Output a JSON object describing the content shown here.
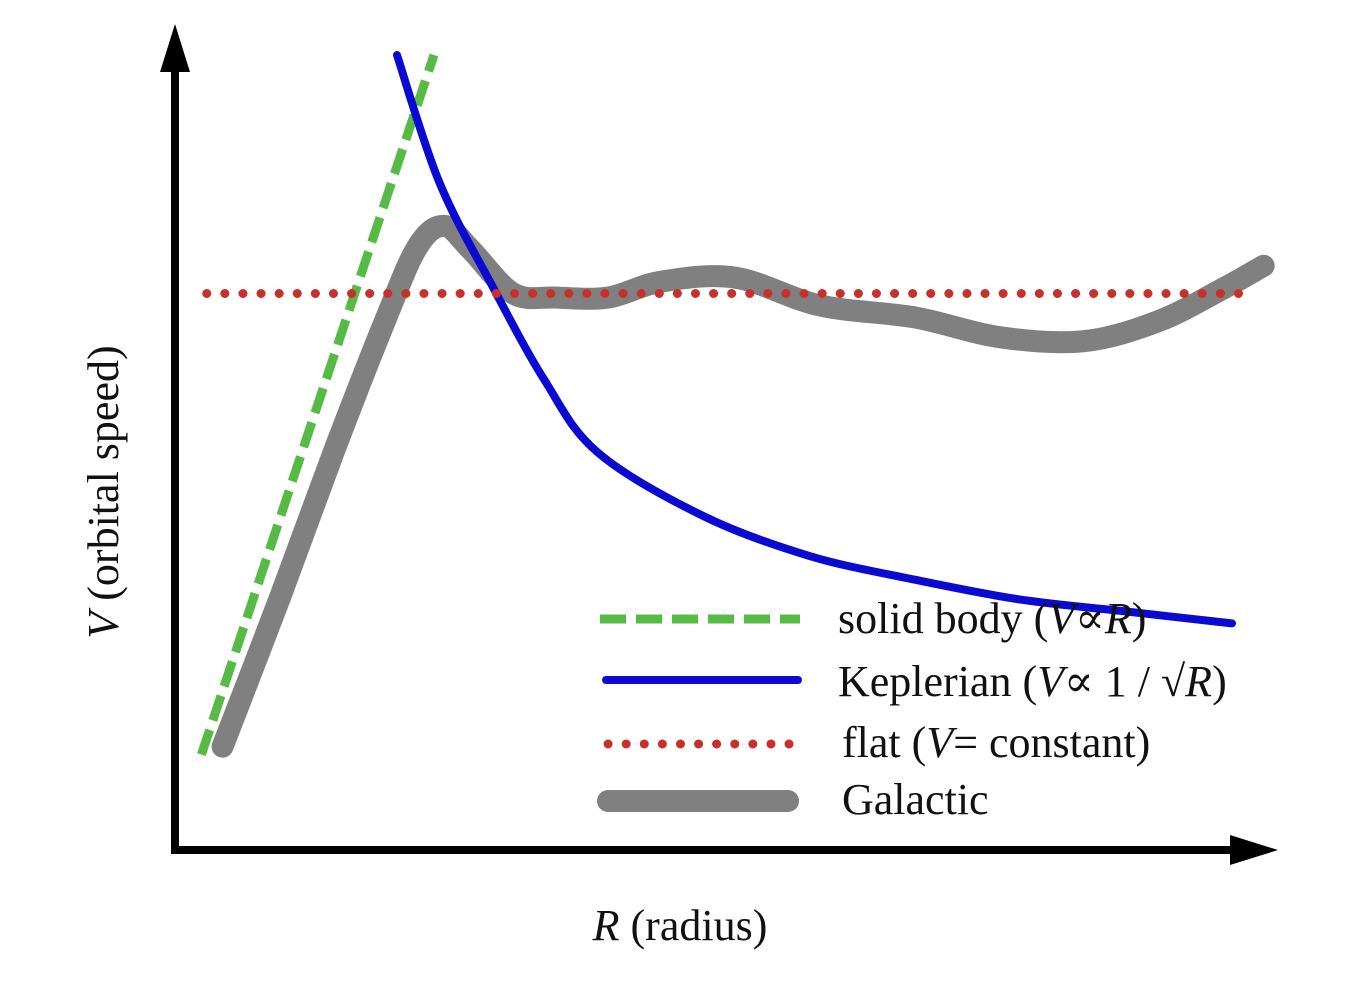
{
  "chart_data": {
    "type": "line",
    "title": "",
    "xlabel": {
      "var": "R",
      "rest": " (radius)"
    },
    "ylabel": {
      "var": "V",
      "rest": " (orbital speed)"
    },
    "axis_ticks": "none",
    "grid": false,
    "legend_position": "bottom-right",
    "xlim": [
      0,
      10
    ],
    "ylim": [
      0,
      10
    ],
    "series": [
      {
        "key": "solid",
        "name": "solid body",
        "legend": [
          "solid body (",
          "V",
          "∝",
          "R",
          ")"
        ],
        "style": "dashed",
        "color": "#55bb44",
        "x": [
          0.25,
          2.45
        ],
        "y": [
          1.2,
          10.0
        ]
      },
      {
        "key": "kepler",
        "name": "Keplerian",
        "legend": [
          "Keplerian (",
          "V",
          "∝ 1 / √",
          "R",
          ")"
        ],
        "style": "solid",
        "color": "#0a0ad2",
        "x": [
          2.1,
          2.5,
          3.0,
          3.5,
          4.0,
          5.0,
          6.0,
          7.0,
          8.0,
          9.0,
          10.0
        ],
        "y": [
          10.0,
          8.4,
          7.1,
          5.9,
          5.0,
          4.2,
          3.7,
          3.4,
          3.15,
          3.0,
          2.85
        ]
      },
      {
        "key": "flat",
        "name": "flat",
        "legend": [
          "flat (",
          "V",
          "= constant)",
          "",
          ""
        ],
        "style": "dotted",
        "color": "#c8302c",
        "x": [
          0.3,
          10.1
        ],
        "y": [
          7.0,
          7.0
        ]
      },
      {
        "key": "galactic",
        "name": "Galactic",
        "legend": [
          "Galactic",
          "",
          "",
          "",
          ""
        ],
        "style": "thick",
        "color": "#808080",
        "x": [
          0.45,
          1.0,
          1.5,
          2.0,
          2.3,
          2.55,
          2.8,
          3.2,
          3.6,
          4.1,
          4.6,
          5.3,
          6.1,
          7.0,
          7.8,
          8.6,
          9.3,
          9.9,
          10.3
        ],
        "y": [
          1.3,
          3.2,
          5.0,
          6.7,
          7.6,
          7.85,
          7.55,
          7.0,
          6.95,
          6.95,
          7.15,
          7.2,
          6.85,
          6.7,
          6.45,
          6.4,
          6.65,
          7.05,
          7.35
        ]
      }
    ]
  }
}
